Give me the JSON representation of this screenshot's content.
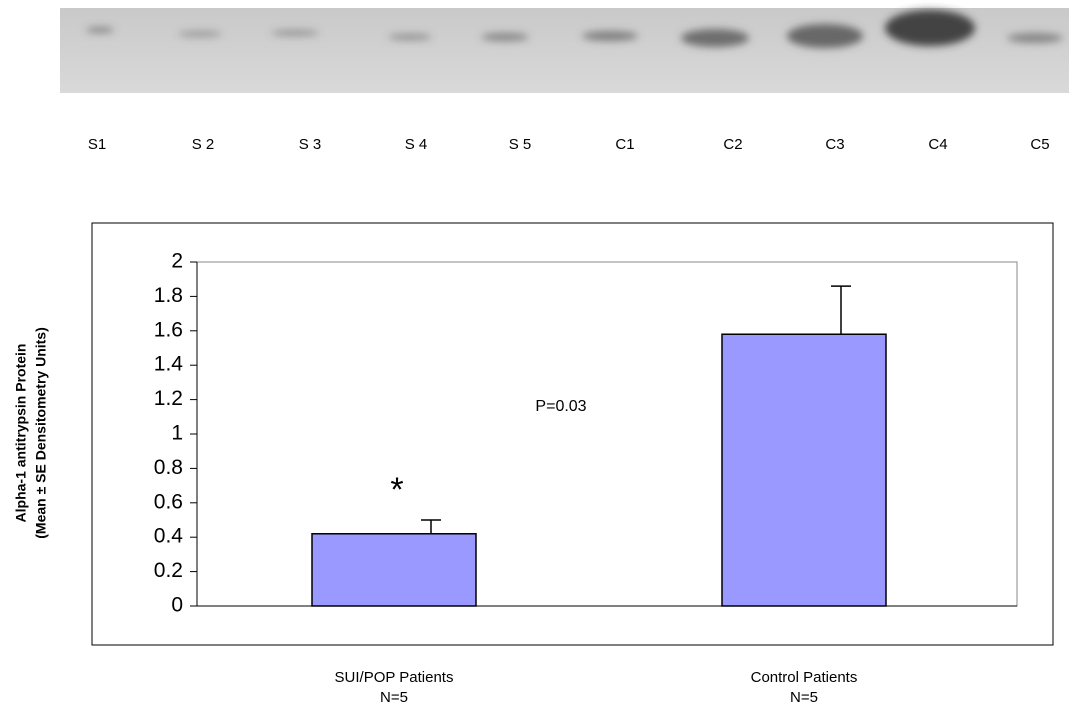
{
  "blot": {
    "lanes": [
      "S1",
      "S 2",
      "S 3",
      "S 4",
      "S 5",
      "C1",
      "C2",
      "C3",
      "C4",
      "C5"
    ]
  },
  "chart_data": {
    "type": "bar",
    "y_label": [
      "Alpha-1 antitrypsin Protein",
      "(Mean ± SE Densitometry Units)"
    ],
    "categories": [
      [
        "SUI/POP  Patients",
        "N=5"
      ],
      [
        "Control Patients",
        "N=5"
      ]
    ],
    "values": [
      0.42,
      1.58
    ],
    "errors": [
      0.08,
      0.28
    ],
    "color": "#9999ff",
    "ylim": [
      0,
      2
    ],
    "yticks": [
      0,
      0.2,
      0.4,
      0.6,
      0.8,
      1,
      1.2,
      1.4,
      1.6,
      1.8,
      2
    ],
    "grid": false,
    "annotations": [
      "P=0.03",
      "*"
    ]
  }
}
